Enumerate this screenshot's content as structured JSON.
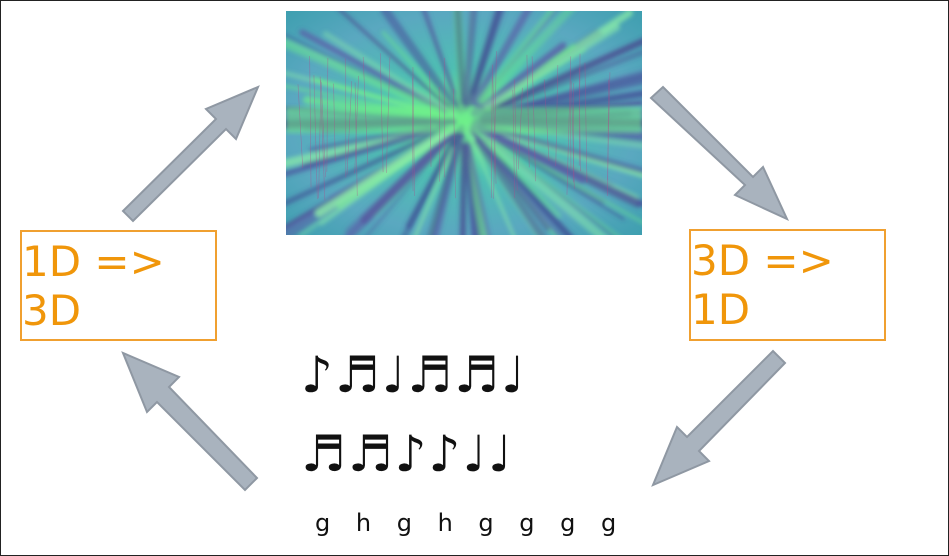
{
  "left_box": {
    "label": "1D => 3D"
  },
  "right_box": {
    "label": "3D => 1D"
  },
  "notes": {
    "row1": "♪♬♩♬♬♩",
    "row2": "♬♬♪♪♩♩",
    "letters": "g h g h g  g  g  g"
  },
  "colors": {
    "box_border": "#f0a030",
    "box_text": "#f0960a",
    "arrow_fill": "#a9b3be",
    "arrow_stroke": "#8f98a3",
    "viz_teal": "#4fbfb3",
    "viz_green": "#6ff08a",
    "viz_purple": "#4a4f9a"
  }
}
